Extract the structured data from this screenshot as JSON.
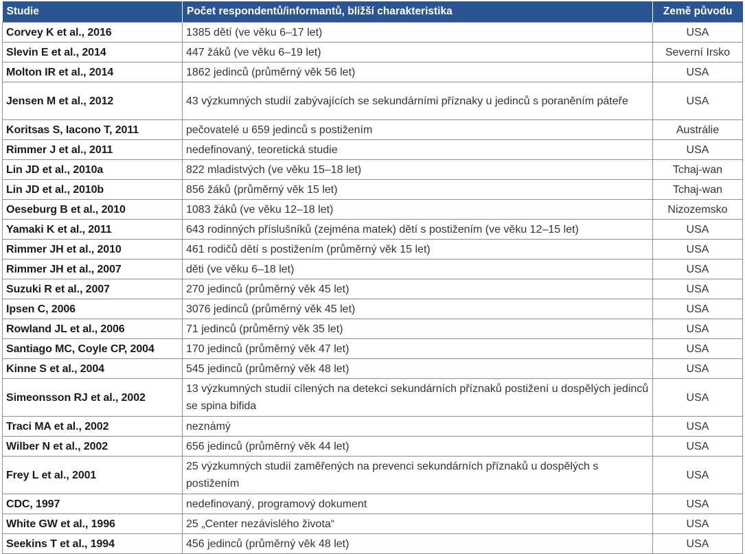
{
  "table": {
    "headers": {
      "study": "Studie",
      "respondents": "Počet respondentů/informantů, bližší charakteristika",
      "country": "Země původu"
    },
    "rows": [
      {
        "study": "Corvey K et al., 2016",
        "respondents": "1385 dětí (ve věku 6–17 let)",
        "country": "USA"
      },
      {
        "study": "Slevin E et al., 2014",
        "respondents": "447 žáků (ve věku 6–19 let)",
        "country": "Severní Irsko"
      },
      {
        "study": "Molton IR et al., 2014",
        "respondents": "1862 jedinců (průměrný věk 56 let)",
        "country": "USA"
      },
      {
        "study": "Jensen M et al., 2012",
        "respondents": "43 výzkumných studií zabývajících se sekundárními příznaky u jedinců s poraněním páteře",
        "country": "USA"
      },
      {
        "study": "Koritsas S, Iacono T, 2011",
        "respondents": "pečovatelé u 659 jedinců s postižením",
        "country": "Austrálie"
      },
      {
        "study": "Rimmer J et al., 2011",
        "respondents": "nedefinovaný, teoretická studie",
        "country": "USA"
      },
      {
        "study": "Lin JD et al., 2010a",
        "respondents": "822 mladistvých (ve věku 15–18 let)",
        "country": "Tchaj-wan"
      },
      {
        "study": "Lin JD et al., 2010b",
        "respondents": "856 žáků (průměrný věk 15 let)",
        "country": "Tchaj-wan"
      },
      {
        "study": "Oeseburg B et al., 2010",
        "respondents": "1083 žáků (ve věku 12–18 let)",
        "country": "Nizozemsko"
      },
      {
        "study": "Yamaki K et al., 2011",
        "respondents": "643 rodinných příslušníků (zejména matek) dětí s postižením (ve věku 12–15 let)",
        "country": "USA"
      },
      {
        "study": "Rimmer JH et al., 2010",
        "respondents": "461 rodičů dětí s postižením (průměrný věk 15 let)",
        "country": "USA"
      },
      {
        "study": "Rimmer JH et al., 2007",
        "respondents": "děti (ve věku 6–18 let)",
        "country": "USA"
      },
      {
        "study": "Suzuki R et al., 2007",
        "respondents": "270 jedinců (průměrný věk 45 let)",
        "country": "USA"
      },
      {
        "study": "Ipsen C, 2006",
        "respondents": "3076 jedinců (průměrný věk 45 let)",
        "country": "USA"
      },
      {
        "study": "Rowland JL et al., 2006",
        "respondents": "71 jedinců (průměrný věk 35 let)",
        "country": "USA"
      },
      {
        "study": "Santiago MC, Coyle CP, 2004",
        "respondents": "170 jedinců (průměrný věk 47 let)",
        "country": "USA"
      },
      {
        "study": "Kinne S et al., 2004",
        "respondents": "545 jedinců (průměrný věk 48 let)",
        "country": "USA"
      },
      {
        "study": "Simeonsson RJ et al., 2002",
        "respondents": "13 výzkumných studií cílených na detekci sekundárních příznaků postižení u dospělých jedinců se spina bifida",
        "country": "USA"
      },
      {
        "study": "Traci MA et al., 2002",
        "respondents": "neznámý",
        "country": "USA"
      },
      {
        "study": "Wilber N et al., 2002",
        "respondents": "656 jedinců (průměrný věk 44 let)",
        "country": "USA"
      },
      {
        "study": "Frey L et al., 2001",
        "respondents": "25 výzkumných studií zaměřených na prevenci sekundárních příznaků u dospělých s postižením",
        "country": "USA"
      },
      {
        "study": "CDC, 1997",
        "respondents": "nedefinovaný, programový dokument",
        "country": "USA"
      },
      {
        "study": "White GW et al., 1996",
        "respondents": "25 „Center nezávislého života“",
        "country": "USA"
      },
      {
        "study": "Seekins T et al., 1994",
        "respondents": "456 jedinců (průměrný věk 48 let)",
        "country": "USA"
      }
    ]
  },
  "colors": {
    "header_background": "#2b5592",
    "header_text": "#ffffff",
    "border": "#8c8c8c"
  }
}
